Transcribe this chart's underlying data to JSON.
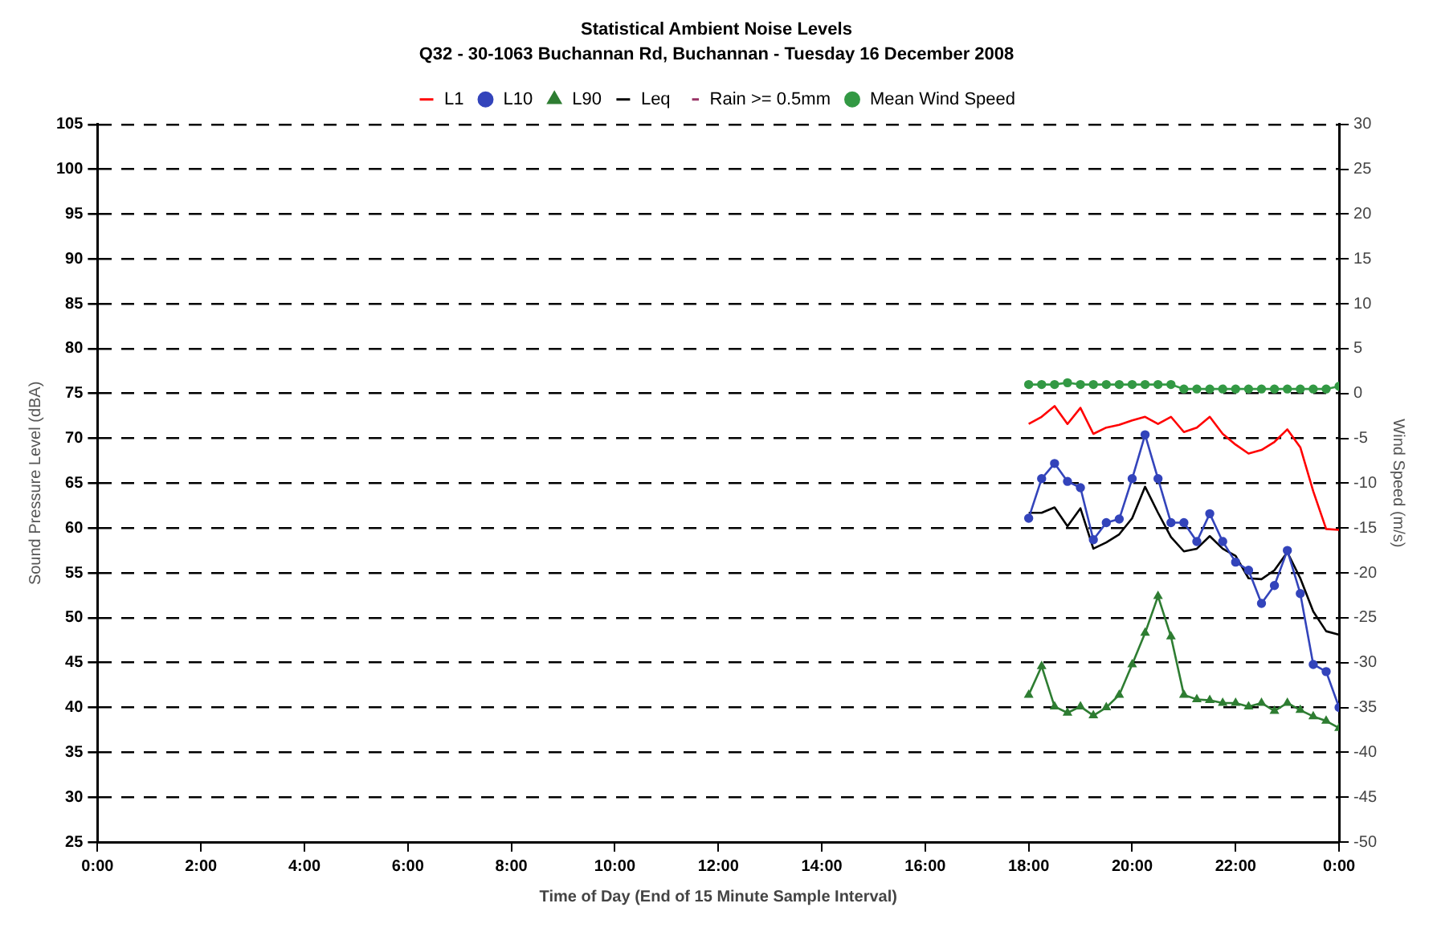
{
  "chart_data": {
    "type": "line",
    "title": "Statistical Ambient Noise Levels",
    "subtitle": "Q32 - 30-1063 Buchannan Rd, Buchannan - Tuesday 16 December 2008",
    "xlabel": "Time of Day (End of 15 Minute Sample Interval)",
    "ylabel": "Sound Pressure Level (dBA)",
    "y2label": "Wind Speed (m/s)",
    "x": [
      18,
      18.25,
      18.5,
      18.75,
      19,
      19.25,
      19.5,
      19.75,
      20,
      20.25,
      20.5,
      20.75,
      21,
      21.25,
      21.5,
      21.75,
      22,
      22.25,
      22.5,
      22.75,
      23,
      23.25,
      23.5,
      23.75,
      24
    ],
    "series": [
      {
        "name": "L1",
        "color": "#ff0000",
        "marker": "none",
        "values": [
          71.6,
          72.4,
          73.6,
          71.6,
          73.4,
          70.5,
          71.2,
          71.5,
          72.0,
          72.4,
          71.6,
          72.4,
          70.7,
          71.2,
          72.4,
          70.5,
          69.3,
          68.3,
          68.7,
          69.6,
          71.0,
          69.0,
          64.1,
          59.9,
          59.8
        ]
      },
      {
        "name": "L10",
        "color": "#3344bb",
        "marker": "circle",
        "values": [
          61.1,
          65.5,
          67.2,
          65.2,
          64.5,
          58.7,
          60.6,
          61.0,
          65.5,
          70.4,
          65.5,
          60.6,
          60.6,
          58.5,
          61.6,
          58.5,
          56.2,
          55.3,
          51.6,
          53.6,
          57.5,
          52.7,
          44.8,
          44.0,
          40.0
        ]
      },
      {
        "name": "L90",
        "color": "#2e7d32",
        "marker": "triangle",
        "values": [
          41.4,
          44.6,
          40.1,
          39.4,
          40.1,
          39.1,
          40.0,
          41.4,
          44.8,
          48.3,
          52.4,
          47.9,
          41.4,
          40.9,
          40.8,
          40.5,
          40.5,
          40.1,
          40.5,
          39.6,
          40.5,
          39.7,
          39.0,
          38.5,
          37.7
        ]
      },
      {
        "name": "Leq",
        "color": "#000000",
        "marker": "none",
        "values": [
          61.7,
          61.7,
          62.3,
          60.2,
          62.2,
          57.7,
          58.4,
          59.3,
          61.1,
          64.6,
          61.7,
          59.0,
          57.4,
          57.7,
          59.1,
          57.7,
          56.9,
          54.4,
          54.3,
          55.3,
          57.3,
          54.4,
          50.7,
          48.5,
          48.1
        ]
      },
      {
        "name": "Rain >= 0.5mm",
        "type": "scatter",
        "color": "#993366",
        "marker": "none",
        "axis": "y2",
        "values": [
          null,
          null,
          null,
          null,
          null,
          null,
          null,
          null,
          null,
          null,
          null,
          null,
          null,
          null,
          null,
          null,
          null,
          null,
          null,
          null,
          null,
          null,
          null,
          null,
          null
        ]
      },
      {
        "name": "Mean Wind Speed",
        "color": "#339944",
        "marker": "circle",
        "axis": "y2",
        "values": [
          1.0,
          1.0,
          1.0,
          1.2,
          1.0,
          1.0,
          1.0,
          1.0,
          1.0,
          1.0,
          1.0,
          1.0,
          0.5,
          0.5,
          0.5,
          0.5,
          0.5,
          0.5,
          0.5,
          0.5,
          0.5,
          0.5,
          0.5,
          0.5,
          0.8
        ]
      }
    ],
    "xlim": [
      0,
      24
    ],
    "xticks": [
      {
        "value": 0,
        "label": "0:00"
      },
      {
        "value": 2,
        "label": "2:00"
      },
      {
        "value": 4,
        "label": "4:00"
      },
      {
        "value": 6,
        "label": "6:00"
      },
      {
        "value": 8,
        "label": "8:00"
      },
      {
        "value": 10,
        "label": "10:00"
      },
      {
        "value": 12,
        "label": "12:00"
      },
      {
        "value": 14,
        "label": "14:00"
      },
      {
        "value": 16,
        "label": "16:00"
      },
      {
        "value": 18,
        "label": "18:00"
      },
      {
        "value": 20,
        "label": "20:00"
      },
      {
        "value": 22,
        "label": "22:00"
      },
      {
        "value": 24,
        "label": "0:00"
      }
    ],
    "ylim": [
      25,
      105
    ],
    "yticks": [
      25,
      30,
      35,
      40,
      45,
      50,
      55,
      60,
      65,
      70,
      75,
      80,
      85,
      90,
      95,
      100,
      105
    ],
    "y2lim": [
      -50,
      30
    ],
    "y2ticks": [
      -50,
      -45,
      -40,
      -35,
      -30,
      -25,
      -20,
      -15,
      -10,
      -5,
      0,
      5,
      10,
      15,
      20,
      25,
      30
    ],
    "grid": "y",
    "legend": "top",
    "line_style": "solid"
  }
}
